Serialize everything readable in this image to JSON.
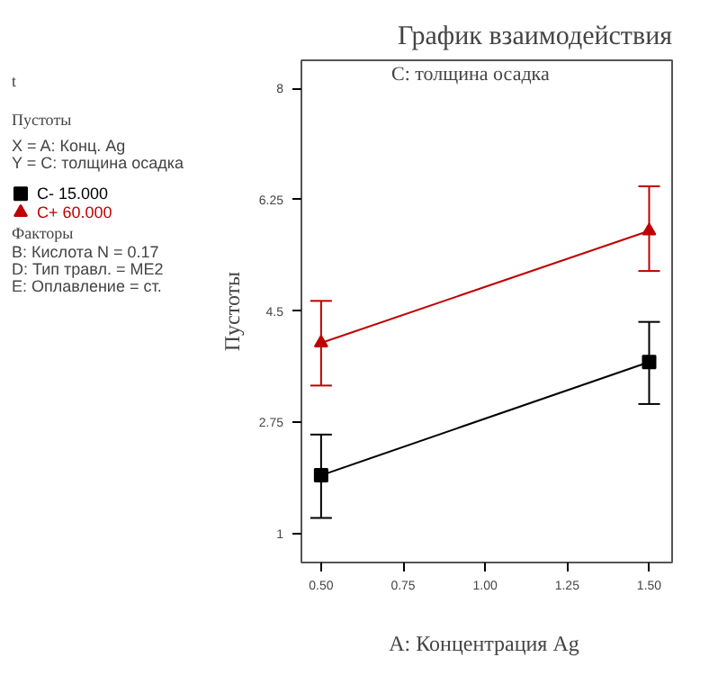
{
  "chart_data": {
    "type": "line",
    "title": "График взаимодействия",
    "subtitle": "C: толщина осадка",
    "xlabel": "A: Концентрация  Ag",
    "ylabel": "Пустоты",
    "annotations": [
      "t",
      "Пустоты",
      "X = A: Конц.  Ag",
      "Y = C:  толщина  осадка",
      "Факторы",
      "B: Кислота  N = 0.17",
      "D: Тип травл.  = ME2",
      "E: Оплавление  = ст."
    ],
    "x": [
      0.5,
      1.5
    ],
    "series": [
      {
        "name": "C-  15.000",
        "color": "#000000",
        "marker": "square",
        "values": [
          1.92,
          3.7
        ],
        "errors": [
          [
            1.25,
            2.56
          ],
          [
            3.04,
            4.33
          ]
        ]
      },
      {
        "name": "C+  60.000",
        "color": "#c00000",
        "marker": "triangle",
        "values": [
          4.0,
          5.76
        ],
        "errors": [
          [
            3.33,
            4.66
          ],
          [
            5.13,
            6.46
          ]
        ]
      }
    ],
    "xlim": [
      0.44,
      1.57
    ],
    "ylim": [
      0.55,
      8.44
    ],
    "xticks": [
      {
        "value": 0.5,
        "label": "0.50"
      },
      {
        "value": 0.75,
        "label": "0.75"
      },
      {
        "value": 1.0,
        "label": "1.00"
      },
      {
        "value": 1.25,
        "label": "1.25"
      },
      {
        "value": 1.5,
        "label": "1.50"
      }
    ],
    "yticks": [
      1,
      2.75,
      4.5,
      6.25,
      8
    ],
    "grid": false,
    "legend": "left",
    "line_style": "solid"
  }
}
